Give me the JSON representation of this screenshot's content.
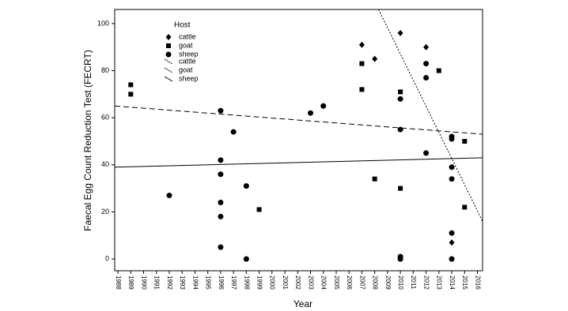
{
  "chart_data": {
    "type": "scatter",
    "x_label": "Year",
    "y_label": "Faecal Egg Count Reduction Test (FECRT)",
    "legend_title": "Host",
    "xlim": [
      1987.75,
      2016.4
    ],
    "ylim": [
      -5,
      106
    ],
    "xticks": [
      1988,
      1989,
      1990,
      1991,
      1992,
      1993,
      1994,
      1995,
      1996,
      1997,
      1998,
      1999,
      2000,
      2001,
      2002,
      2003,
      2004,
      2005,
      2006,
      2007,
      2008,
      2009,
      2010,
      2011,
      2012,
      2013,
      2014,
      2015,
      2016
    ],
    "yticks": [
      0,
      20,
      40,
      60,
      80,
      100
    ],
    "series": [
      {
        "name": "cattle",
        "marker": "diamond",
        "color": "#000000",
        "x": [
          2007,
          2008,
          2010,
          2012,
          2014
        ],
        "values": [
          91,
          85,
          96,
          90,
          7
        ]
      },
      {
        "name": "goat",
        "marker": "square",
        "color": "#000000",
        "x": [
          1989,
          1989,
          1999,
          2007,
          2007,
          2008,
          2010,
          2010,
          2013,
          2015,
          2015
        ],
        "values": [
          74,
          70,
          21,
          83,
          72,
          34,
          71,
          30,
          80,
          50,
          22
        ]
      },
      {
        "name": "sheep",
        "marker": "circle",
        "color": "#000000",
        "x": [
          1992,
          1996,
          1996,
          1996,
          1996,
          1996,
          1996,
          1997,
          1998,
          1998,
          2003,
          2004,
          2010,
          2010,
          2010,
          2010,
          2012,
          2012,
          2012,
          2014,
          2014,
          2014,
          2014,
          2014,
          2014
        ],
        "values": [
          27,
          63,
          42,
          36,
          24,
          18,
          5,
          54,
          31,
          0,
          62,
          65,
          68,
          55,
          1,
          0,
          83,
          77,
          45,
          52,
          51,
          39,
          34,
          11,
          0
        ]
      }
    ],
    "lines": [
      {
        "name": "cattle",
        "dash": "dotted",
        "x": [
          2008.3,
          2016.4
        ],
        "values": [
          106,
          16
        ]
      },
      {
        "name": "goat",
        "dash": "dashed",
        "x": [
          1987.75,
          2016.4
        ],
        "values": [
          65,
          53
        ]
      },
      {
        "name": "sheep",
        "dash": "solid",
        "x": [
          1987.75,
          2016.4
        ],
        "values": [
          39,
          43
        ]
      }
    ]
  }
}
